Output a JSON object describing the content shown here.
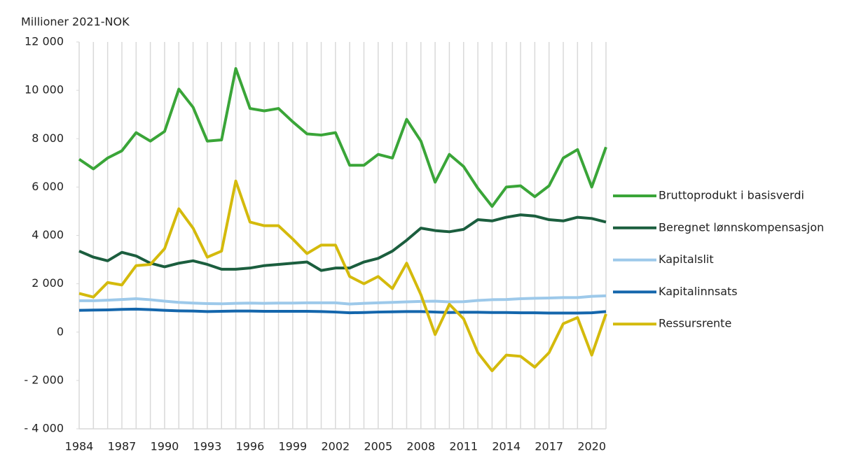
{
  "chart_data": {
    "type": "line",
    "y_axis_label": "Millioner 2021-NOK",
    "x": [
      1984,
      1985,
      1986,
      1987,
      1988,
      1989,
      1990,
      1991,
      1992,
      1993,
      1994,
      1995,
      1996,
      1997,
      1998,
      1999,
      2000,
      2001,
      2002,
      2003,
      2004,
      2005,
      2006,
      2007,
      2008,
      2009,
      2010,
      2011,
      2012,
      2013,
      2014,
      2015,
      2016,
      2017,
      2018,
      2019,
      2020,
      2021
    ],
    "xlim": [
      1984,
      2021
    ],
    "xticks": [
      1984,
      1987,
      1990,
      1993,
      1996,
      1999,
      2002,
      2005,
      2008,
      2011,
      2014,
      2017,
      2020
    ],
    "ylim": [
      -4000,
      12000
    ],
    "yticks": [
      {
        "value": -4000,
        "label": "- 4 000"
      },
      {
        "value": -2000,
        "label": "- 2 000"
      },
      0,
      {
        "value": 2000,
        "label": "2 000"
      },
      {
        "value": 4000,
        "label": "4 000"
      },
      {
        "value": 6000,
        "label": "6 000"
      },
      {
        "value": 8000,
        "label": "8 000"
      },
      {
        "value": 10000,
        "label": "10 000"
      },
      {
        "value": 12000,
        "label": "12 000"
      }
    ],
    "grid": true,
    "legend": "right",
    "series": [
      {
        "name": "Bruttoprodukt i basisverdi",
        "color": "#3aa538",
        "values": [
          7150,
          6750,
          7200,
          7500,
          8250,
          7900,
          8300,
          10050,
          9300,
          7900,
          7950,
          10900,
          9250,
          9150,
          9250,
          8700,
          8200,
          8150,
          8250,
          6900,
          6900,
          7350,
          7200,
          8800,
          7900,
          6200,
          7350,
          6850,
          5950,
          5200,
          6000,
          6050,
          5600,
          6050,
          7200,
          7550,
          6000,
          7650
        ]
      },
      {
        "name": "Beregnet lønnskompensasjon",
        "color": "#1b5e3e",
        "values": [
          3350,
          3100,
          2950,
          3300,
          3150,
          2850,
          2700,
          2850,
          2950,
          2800,
          2600,
          2600,
          2650,
          2750,
          2800,
          2850,
          2900,
          2550,
          2650,
          2650,
          2900,
          3050,
          3350,
          3800,
          4300,
          4200,
          4150,
          4250,
          4650,
          4600,
          4750,
          4850,
          4800,
          4650,
          4600,
          4750,
          4700,
          4550
        ]
      },
      {
        "name": "Kapitalslit",
        "color": "#9dc9ea",
        "values": [
          1300,
          1300,
          1320,
          1350,
          1380,
          1340,
          1280,
          1230,
          1200,
          1180,
          1170,
          1190,
          1200,
          1190,
          1200,
          1200,
          1210,
          1210,
          1210,
          1160,
          1190,
          1210,
          1230,
          1250,
          1270,
          1280,
          1250,
          1260,
          1310,
          1340,
          1350,
          1380,
          1400,
          1410,
          1430,
          1430,
          1480,
          1500
        ]
      },
      {
        "name": "Kapitalinnsats",
        "color": "#1466ac",
        "values": [
          900,
          910,
          920,
          940,
          950,
          930,
          900,
          880,
          870,
          850,
          860,
          870,
          870,
          860,
          860,
          860,
          860,
          850,
          830,
          800,
          810,
          830,
          840,
          850,
          850,
          830,
          810,
          820,
          820,
          810,
          810,
          800,
          800,
          790,
          790,
          790,
          800,
          850
        ]
      },
      {
        "name": "Ressursrente",
        "color": "#d4ba0c",
        "values": [
          1600,
          1450,
          2050,
          1950,
          2750,
          2800,
          3450,
          5100,
          4300,
          3100,
          3350,
          6250,
          4550,
          4400,
          4400,
          3850,
          3250,
          3600,
          3600,
          2300,
          2000,
          2300,
          1800,
          2850,
          1550,
          -100,
          1150,
          550,
          -850,
          -1600,
          -950,
          -1000,
          -1450,
          -850,
          350,
          600,
          -950,
          750
        ]
      }
    ]
  }
}
